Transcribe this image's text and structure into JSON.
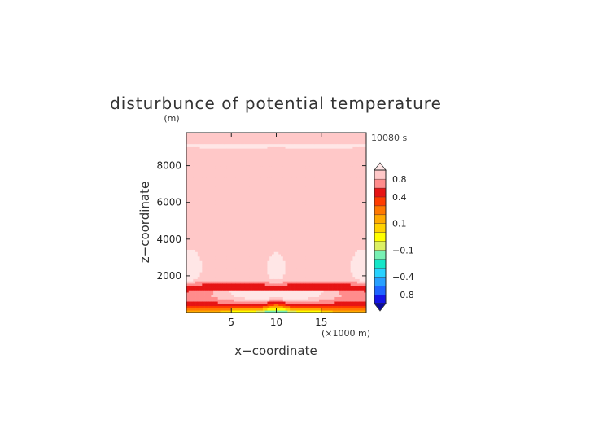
{
  "chart_data": {
    "type": "heatmap",
    "title": "disturbunce of potential temperature",
    "time_label": "10080 s",
    "y_unit": "(m)",
    "x_unit": "(×1000 m)",
    "xlabel": "x−coordinate",
    "ylabel": "z−coordinate",
    "xlim": [
      0,
      20
    ],
    "ylim": [
      0,
      9800
    ],
    "x_ticks": [
      5,
      10,
      15
    ],
    "y_ticks": [
      2000,
      4000,
      6000,
      8000
    ],
    "x_tick_labels": [
      "5",
      "10",
      "15"
    ],
    "y_tick_labels": [
      "2000",
      "4000",
      "6000",
      "8000"
    ],
    "colorbar": {
      "levels": [
        -1.0,
        -0.8,
        -0.6,
        -0.4,
        -0.3,
        -0.2,
        -0.1,
        -0.05,
        0.05,
        0.1,
        0.2,
        0.3,
        0.4,
        0.6,
        0.8,
        1.0
      ],
      "colors": [
        "#1414e6",
        "#1e64ff",
        "#28a0ff",
        "#28d2ff",
        "#14e6c8",
        "#78f0b4",
        "#dcf064",
        "#ffff00",
        "#ffd200",
        "#ffaa00",
        "#ff7800",
        "#ff3c00",
        "#e61414",
        "#ff8c8c",
        "#ffc8c8"
      ],
      "under_color": "#0a0aa0",
      "over_color": "#ffe6e6",
      "labels": [
        "0.8",
        "0.4",
        "0.1",
        "−0.1",
        "−0.4",
        "−0.8"
      ],
      "label_values": [
        0.8,
        0.4,
        0.1,
        -0.1,
        -0.4,
        -0.8
      ]
    }
  }
}
